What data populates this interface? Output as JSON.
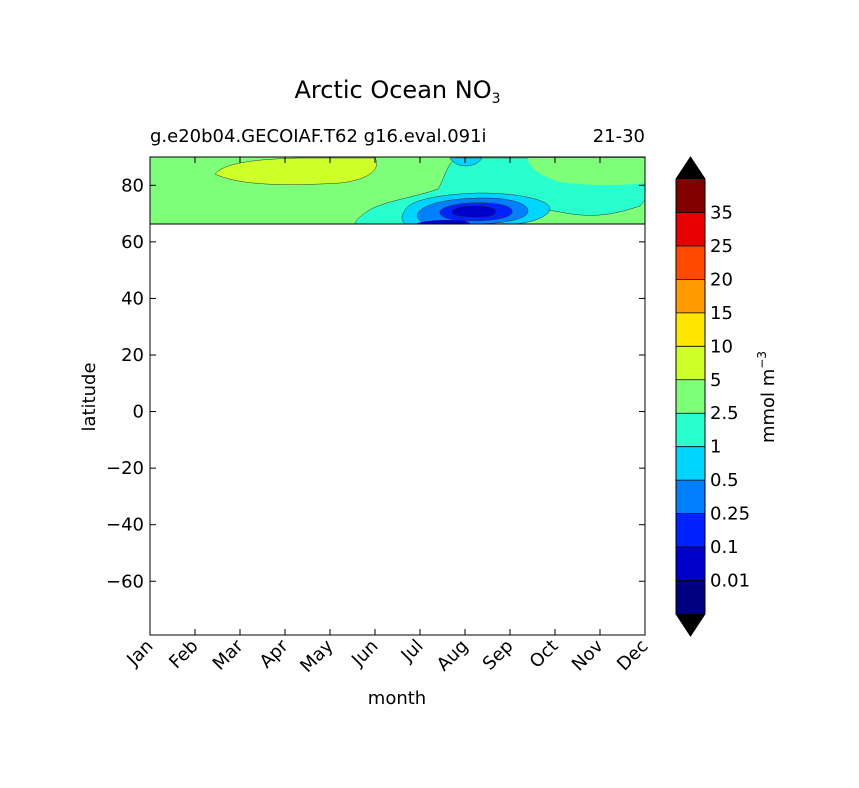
{
  "chart_data": {
    "type": "heatmap",
    "title_main": "Arctic Ocean NO",
    "title_sub": "3",
    "subtitle_left": "g.e20b04.GECOIAF.T62 g16.eval.091i",
    "subtitle_right": "21-30",
    "xlabel": "month",
    "ylabel": "latitude",
    "x_categories": [
      "Jan",
      "Feb",
      "Mar",
      "Apr",
      "May",
      "Jun",
      "Jul",
      "Aug",
      "Sep",
      "Oct",
      "Nov",
      "Dec"
    ],
    "y_ticks": [
      80,
      60,
      40,
      20,
      0,
      -20,
      -40,
      -60
    ],
    "ylim": [
      -79,
      90
    ],
    "data_lat_range": [
      66,
      90
    ],
    "colorbar": {
      "label": "mmol m",
      "label_exp": "−3",
      "levels": [
        "0.01",
        "0.1",
        "0.25",
        "0.5",
        "1",
        "2.5",
        "5",
        "10",
        "15",
        "20",
        "25",
        "35"
      ],
      "colors": [
        "#000080",
        "#0000cd",
        "#0022ff",
        "#0080ff",
        "#00d5ff",
        "#29ffce",
        "#7dff7a",
        "#ceff29",
        "#ffe600",
        "#ff9b00",
        "#ff4a00",
        "#e60000",
        "#800000"
      ],
      "extend": "both"
    },
    "regions": [
      {
        "level": "2.5-5",
        "description": "background across Jan-Dec, 66-90N"
      },
      {
        "level": "5-10",
        "months": [
          "Feb",
          "May"
        ],
        "lat": [
          84,
          90
        ]
      },
      {
        "level": "1-2.5",
        "months": [
          "Jun",
          "Dec"
        ],
        "lat": [
          66,
          87
        ]
      },
      {
        "level": "0.5-1",
        "months": [
          "Jul",
          "Sep"
        ],
        "lat": [
          66,
          80
        ]
      },
      {
        "level": "0.25-0.5",
        "months": [
          "Jul",
          "Sep"
        ],
        "lat": [
          67,
          77
        ]
      },
      {
        "level": "0.1-0.25",
        "months": [
          "Aug",
          "Sep"
        ],
        "lat": [
          69,
          74
        ]
      },
      {
        "level": "0.01-0.1",
        "months": [
          "Aug"
        ],
        "lat": [
          71,
          73
        ]
      }
    ]
  }
}
